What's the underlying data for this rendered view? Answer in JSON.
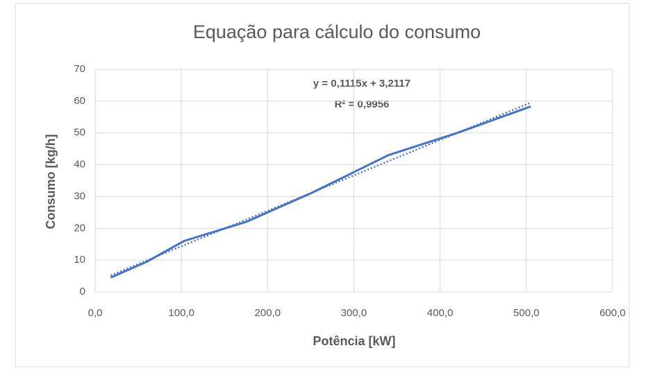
{
  "chart_data": {
    "type": "line",
    "title": "Equação para cálculo do consumo",
    "x_label": "Potência [kW]",
    "y_label": "Consumo [kg/h]",
    "annotations": [
      "y = 0,1115x + 3,2117",
      "R² = 0,9956"
    ],
    "x": [
      18,
      60,
      103,
      175,
      250,
      340,
      420,
      505
    ],
    "series": [
      {
        "color": "#4472c4",
        "values": [
          4.5,
          9.5,
          16,
          22,
          31,
          43,
          50,
          58.3
        ]
      }
    ],
    "trendline": {
      "color": "#4472c4",
      "style": "dotted",
      "x": [
        18,
        505
      ],
      "values": [
        5.2,
        59.5
      ]
    },
    "xlim": [
      0,
      600
    ],
    "xticks": [
      {
        "value": 0,
        "label": "0,0"
      },
      {
        "value": 100,
        "label": "100,0"
      },
      {
        "value": 200,
        "label": "200,0"
      },
      {
        "value": 300,
        "label": "300,0"
      },
      {
        "value": 400,
        "label": "400,0"
      },
      {
        "value": 500,
        "label": "500,0"
      },
      {
        "value": 600,
        "label": "600,0"
      }
    ],
    "ylim": [
      0,
      70
    ],
    "yticks": [
      0,
      10,
      20,
      30,
      40,
      50,
      60,
      70
    ],
    "grid": true
  }
}
